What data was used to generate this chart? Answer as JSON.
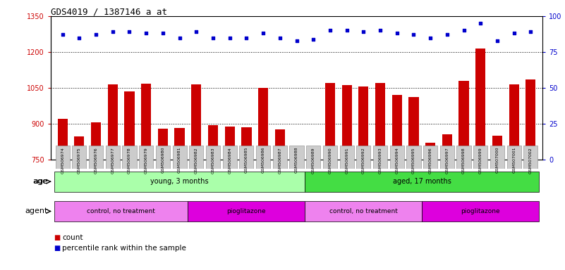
{
  "title": "GDS4019 / 1387146_a_at",
  "samples": [
    "GSM506974",
    "GSM506975",
    "GSM506976",
    "GSM506977",
    "GSM506978",
    "GSM506979",
    "GSM506980",
    "GSM506981",
    "GSM506982",
    "GSM506983",
    "GSM506984",
    "GSM506985",
    "GSM506986",
    "GSM506987",
    "GSM506988",
    "GSM506989",
    "GSM506990",
    "GSM506991",
    "GSM506992",
    "GSM506993",
    "GSM506994",
    "GSM506995",
    "GSM506996",
    "GSM506997",
    "GSM506998",
    "GSM506999",
    "GSM507000",
    "GSM507001",
    "GSM507002"
  ],
  "counts": [
    920,
    845,
    905,
    1065,
    1035,
    1068,
    878,
    880,
    1065,
    893,
    888,
    885,
    1050,
    875,
    800,
    785,
    1070,
    1060,
    1055,
    1070,
    1020,
    1010,
    820,
    855,
    1080,
    1215,
    850,
    1065,
    1085
  ],
  "percentile_ranks": [
    87,
    85,
    87,
    89,
    89,
    88,
    88,
    85,
    89,
    85,
    85,
    85,
    88,
    85,
    83,
    84,
    90,
    90,
    89,
    90,
    88,
    87,
    85,
    87,
    90,
    95,
    83,
    88,
    89
  ],
  "ylim_left": [
    750,
    1350
  ],
  "ylim_right": [
    0,
    100
  ],
  "yticks_left": [
    750,
    900,
    1050,
    1200,
    1350
  ],
  "yticks_right": [
    0,
    25,
    50,
    75,
    100
  ],
  "bar_color": "#cc0000",
  "dot_color": "#0000cc",
  "background_color": "#ffffff",
  "grid_color": "#000000",
  "tick_label_bg": "#cccccc",
  "age_groups": [
    {
      "label": "young, 3 months",
      "start": 0,
      "end": 15,
      "color": "#aaffaa"
    },
    {
      "label": "aged, 17 months",
      "start": 15,
      "end": 29,
      "color": "#44dd44"
    }
  ],
  "agent_groups": [
    {
      "label": "control, no treatment",
      "start": 0,
      "end": 8,
      "color": "#ee82ee"
    },
    {
      "label": "pioglitazone",
      "start": 8,
      "end": 15,
      "color": "#dd00dd"
    },
    {
      "label": "control, no treatment",
      "start": 15,
      "end": 22,
      "color": "#ee82ee"
    },
    {
      "label": "pioglitazone",
      "start": 22,
      "end": 29,
      "color": "#dd00dd"
    }
  ]
}
